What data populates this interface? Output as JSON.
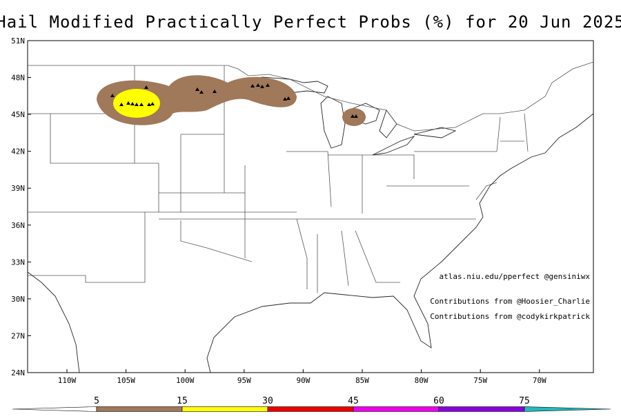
{
  "title": "Hail Modified Practically Perfect Probs (%) for 20 Jun 2025",
  "map": {
    "lat_labels": [
      "51N",
      "48N",
      "45N",
      "42N",
      "39N",
      "36N",
      "33N",
      "30N",
      "27N",
      "24N"
    ],
    "lon_labels": [
      "110W",
      "105W",
      "100W",
      "95W",
      "90W",
      "85W",
      "80W",
      "75W",
      "70W"
    ]
  },
  "annotations": [
    "atlas.niu.edu/pperfect @gensiniwx",
    "Contributions from @Hoosier_Charlie",
    "Contributions from @codykirkpatrick"
  ],
  "colorbar": {
    "levels": [
      5,
      15,
      30,
      45,
      60,
      75
    ],
    "colors": [
      "#ffffff",
      "#a0785a",
      "#ffff00",
      "#ee0000",
      "#ee00ee",
      "#8800dd",
      "#22bbbb"
    ]
  }
}
